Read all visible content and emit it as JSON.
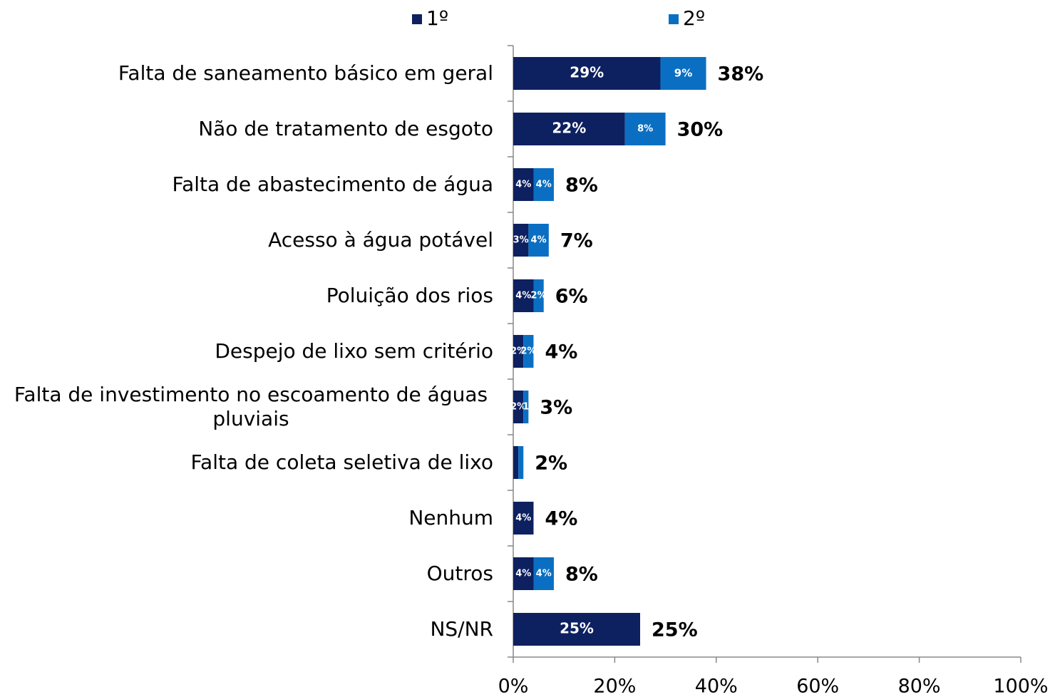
{
  "chart_data": {
    "type": "stacked-barh",
    "categories": [
      "Falta de saneamento básico em geral",
      "Não de tratamento de esgoto",
      "Falta de abastecimento de água",
      "Acesso à água potável",
      "Poluição dos rios",
      "Despejo de lixo sem critério",
      "Falta de investimento no escoamento de águas pluviais",
      "Falta de coleta seletiva de lixo",
      "Nenhum",
      "Outros",
      "NS/NR"
    ],
    "series": [
      {
        "name": "1º",
        "color": "#0d2060",
        "values": [
          29,
          22,
          4,
          3,
          4,
          2,
          2,
          1,
          4,
          4,
          25
        ],
        "value_labels": [
          "29%",
          "22%",
          "4%",
          "3%",
          "4%",
          "2%",
          "2%",
          null,
          "4%",
          "4%",
          "25%"
        ]
      },
      {
        "name": "2º",
        "color": "#0a6fc2",
        "values": [
          9,
          8,
          4,
          4,
          2,
          2,
          1,
          1,
          0,
          4,
          0
        ],
        "value_labels": [
          "9%",
          "8%",
          "4%",
          "4%",
          "2%",
          "2%",
          "1",
          null,
          null,
          "4%",
          null
        ]
      }
    ],
    "totals": [
      38,
      30,
      8,
      7,
      6,
      4,
      3,
      2,
      4,
      8,
      25
    ],
    "total_labels": [
      "38%",
      "30%",
      "8%",
      "7%",
      "6%",
      "4%",
      "3%",
      "2%",
      "4%",
      "8%",
      "25%"
    ],
    "xlim": [
      0,
      100
    ],
    "xticks": [
      {
        "value": 0,
        "label": "0%"
      },
      {
        "value": 20,
        "label": "20%"
      },
      {
        "value": 40,
        "label": "40%"
      },
      {
        "value": 60,
        "label": "60%"
      },
      {
        "value": 80,
        "label": "80%"
      },
      {
        "value": 100,
        "label": "100%"
      }
    ],
    "legend": "top"
  }
}
